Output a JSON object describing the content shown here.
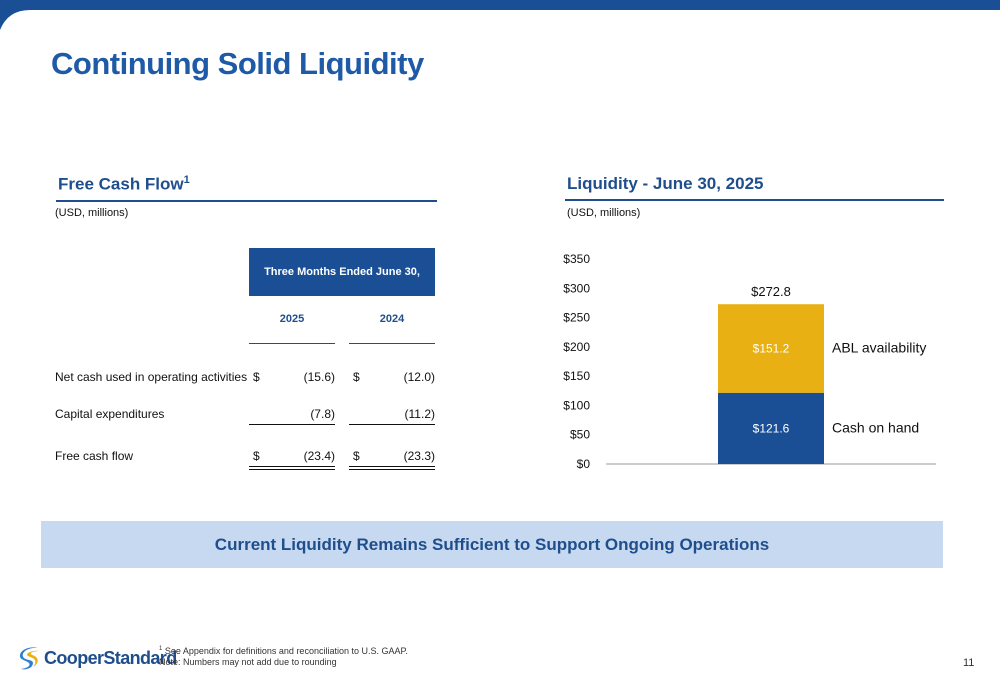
{
  "colors": {
    "accent": "#1f4e8c",
    "cash_bar": "#1a4f96",
    "abl_bar": "#e8b012",
    "banner_bg": "#c7d9f0"
  },
  "page_title": "Continuing Solid Liquidity",
  "fcf": {
    "title": "Free Cash Flow",
    "title_sup": "1",
    "units": "(USD, millions)",
    "header": "Three Months Ended June 30,",
    "years": [
      "2025",
      "2024"
    ],
    "rows": [
      {
        "label": "Net cash used in operating activities",
        "sym_2025": "$",
        "v2025": "(15.6)",
        "sym_2024": "$",
        "v2024": "(12.0)"
      },
      {
        "label": "Capital expenditures",
        "v2025": "(7.8)",
        "v2024": "(11.2)"
      },
      {
        "label": "Free cash flow",
        "sym_2025": "$",
        "v2025": "(23.4)",
        "sym_2024": "$",
        "v2024": "(23.3)"
      }
    ]
  },
  "liquidity": {
    "title": "Liquidity - June 30, 2025",
    "units": "(USD, millions)"
  },
  "chart_data": {
    "type": "bar",
    "stacked": true,
    "categories": [
      ""
    ],
    "series": [
      {
        "name": "Cash on hand",
        "values": [
          121.6
        ],
        "label": "$121.6",
        "color": "#1a4f96"
      },
      {
        "name": "ABL availability",
        "values": [
          151.2
        ],
        "label": "$151.2",
        "color": "#e8b012"
      }
    ],
    "total_label": "$272.8",
    "ylim": [
      0,
      350
    ],
    "yticks": [
      "$0",
      "$50",
      "$100",
      "$150",
      "$200",
      "$250",
      "$300",
      "$350"
    ],
    "ytick_values": [
      0,
      50,
      100,
      150,
      200,
      250,
      300,
      350
    ],
    "grid": false,
    "legend": "right"
  },
  "banner": "Current Liquidity Remains Sufficient to Support Ongoing Operations",
  "footer": {
    "logo_text": "CooperStandard",
    "footnote_sup": "1",
    "footnote_1": " See Appendix for definitions and reconciliation to U.S. GAAP.",
    "footnote_2": "Note: Numbers may not add due to rounding",
    "page_number": "11"
  }
}
